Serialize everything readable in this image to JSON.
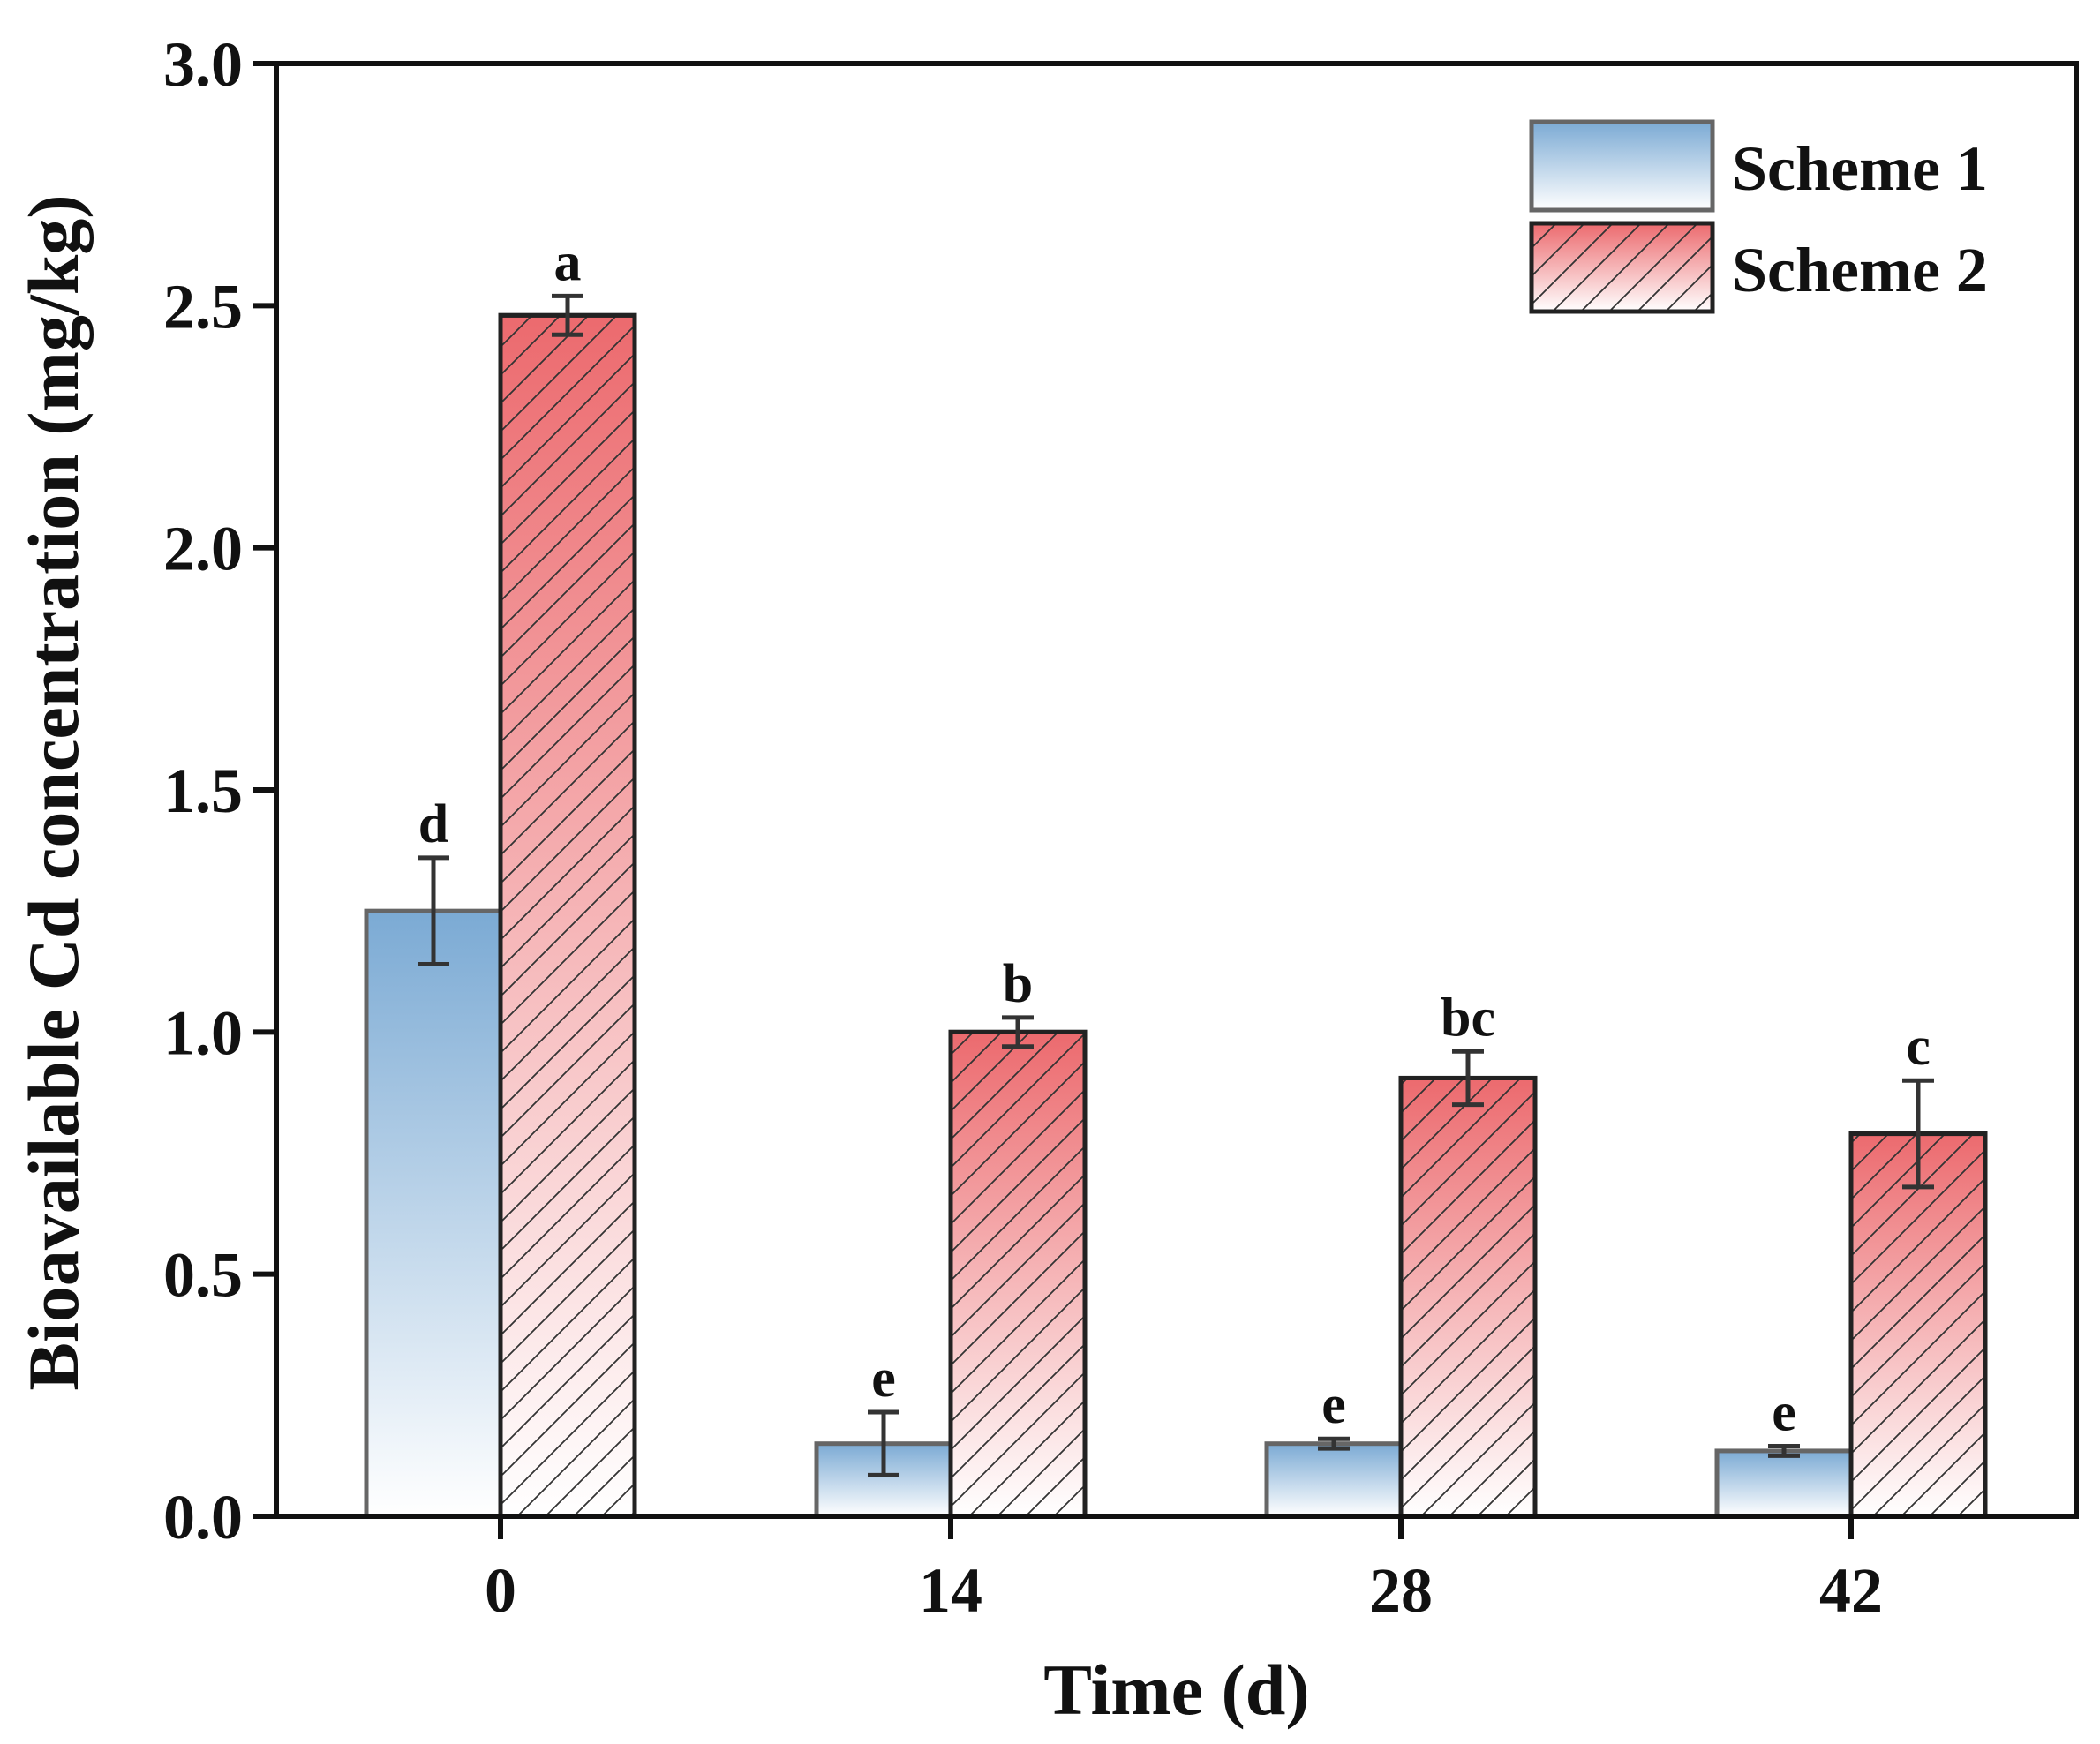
{
  "chart_data": {
    "type": "bar",
    "title": "",
    "xlabel": "Time (d)",
    "ylabel": "Bioavailable Cd concentration (mg/kg)",
    "categories": [
      "0",
      "14",
      "28",
      "42"
    ],
    "ylim": [
      0,
      3.0
    ],
    "yticks": [
      "0.0",
      "0.5",
      "1.0",
      "1.5",
      "2.0",
      "2.5",
      "3.0"
    ],
    "grid": false,
    "legend_position": "top-right",
    "series": [
      {
        "name": "Scheme 1",
        "color": "#7BAAD4",
        "hatch": false,
        "values": [
          1.25,
          0.15,
          0.15,
          0.135
        ],
        "errors": [
          0.11,
          0.065,
          0.01,
          0.01
        ],
        "labels": [
          "d",
          "e",
          "e",
          "e"
        ]
      },
      {
        "name": "Scheme 2",
        "color": "#EC6A6E",
        "hatch": true,
        "values": [
          2.48,
          1.0,
          0.905,
          0.79
        ],
        "errors": [
          0.04,
          0.03,
          0.055,
          0.11
        ],
        "labels": [
          "a",
          "b",
          "bc",
          "c"
        ]
      }
    ]
  }
}
